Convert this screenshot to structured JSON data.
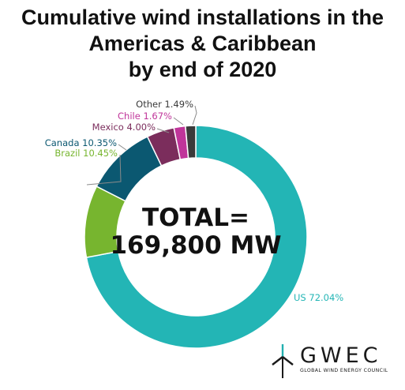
{
  "title": {
    "line1": "Cumulative wind installations in the",
    "line2": "Americas & Caribbean",
    "line3": "by end of 2020"
  },
  "center": {
    "line1": "TOTAL=",
    "line2": "169,800 MW"
  },
  "chart_data": {
    "type": "pie",
    "categories": [
      "US",
      "Brazil",
      "Canada",
      "Mexico",
      "Chile",
      "Other"
    ],
    "values": [
      72.04,
      10.45,
      10.35,
      4.0,
      1.67,
      1.49
    ],
    "labels": [
      "US 72.04%",
      "Brazil 10.45%",
      "Canada 10.35%",
      "Mexico 4.00%",
      "Chile 1.67%",
      "Other 1.49%"
    ],
    "colors": [
      "#23b5b5",
      "#77b52f",
      "#0b5871",
      "#7b2d5c",
      "#c0359a",
      "#3b3b3b"
    ],
    "label_colors": [
      "#23b5b5",
      "#77b52f",
      "#0b5871",
      "#7b2d5c",
      "#c0359a",
      "#3b3b3b"
    ],
    "donut": true,
    "start": "12 o'clock",
    "direction": "clockwise"
  },
  "logo": {
    "word": "GWEC",
    "sub": "GLOBAL WIND ENERGY COUNCIL",
    "color": "#1a1a1a",
    "accent": "#22b0b0"
  }
}
